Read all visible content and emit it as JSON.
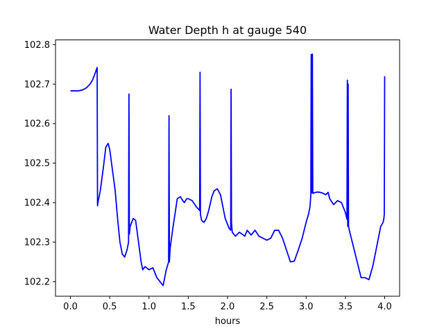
{
  "chart_data": {
    "type": "line",
    "title": "Water Depth h at gauge 540",
    "xlabel": "hours",
    "ylabel": "",
    "xlim": [
      -0.19,
      4.19
    ],
    "ylim": [
      102.163,
      102.812
    ],
    "grid": false,
    "line_color": "#0000ff",
    "xticks": [
      0.0,
      0.5,
      1.0,
      1.5,
      2.0,
      2.5,
      3.0,
      3.5,
      4.0
    ],
    "xtick_labels": [
      "0.0",
      "0.5",
      "1.0",
      "1.5",
      "2.0",
      "2.5",
      "3.0",
      "3.5",
      "4.0"
    ],
    "yticks": [
      102.2,
      102.3,
      102.4,
      102.5,
      102.6,
      102.7,
      102.8
    ],
    "ytick_labels": [
      "102.2",
      "102.3",
      "102.4",
      "102.5",
      "102.6",
      "102.7",
      "102.8"
    ],
    "series": [
      {
        "x": [
          0.0,
          0.1,
          0.15,
          0.2,
          0.25,
          0.28,
          0.31,
          0.34,
          0.345,
          0.35,
          0.38,
          0.42,
          0.45,
          0.48,
          0.5,
          0.53,
          0.57,
          0.6,
          0.63,
          0.66,
          0.69,
          0.72,
          0.74,
          0.745,
          0.75,
          0.76,
          0.8,
          0.83,
          0.86,
          0.9,
          0.92,
          0.95,
          1.0,
          1.05,
          1.1,
          1.14,
          1.18,
          1.2,
          1.22,
          1.25,
          1.255,
          1.26,
          1.265,
          1.27,
          1.3,
          1.33,
          1.36,
          1.4,
          1.43,
          1.45,
          1.48,
          1.5,
          1.55,
          1.6,
          1.645,
          1.65,
          1.655,
          1.67,
          1.7,
          1.73,
          1.76,
          1.8,
          1.83,
          1.87,
          1.91,
          1.94,
          1.97,
          2.0,
          2.02,
          2.04,
          2.045,
          2.05,
          2.06,
          2.1,
          2.15,
          2.2,
          2.22,
          2.25,
          2.3,
          2.35,
          2.4,
          2.45,
          2.5,
          2.55,
          2.6,
          2.65,
          2.7,
          2.75,
          2.8,
          2.85,
          2.9,
          2.95,
          3.0,
          3.03,
          3.05,
          3.06,
          3.065,
          3.07,
          3.075,
          3.08,
          3.085,
          3.09,
          3.1,
          3.15,
          3.2,
          3.25,
          3.28,
          3.3,
          3.35,
          3.4,
          3.45,
          3.5,
          3.52,
          3.525,
          3.53,
          3.535,
          3.54,
          3.55,
          3.6,
          3.65,
          3.7,
          3.75,
          3.8,
          3.85,
          3.9,
          3.95,
          3.98,
          3.99,
          3.995,
          4.0
        ],
        "y": [
          102.683,
          102.683,
          102.685,
          102.69,
          102.7,
          102.71,
          102.725,
          102.742,
          102.392,
          102.4,
          102.43,
          102.49,
          102.54,
          102.55,
          102.535,
          102.49,
          102.43,
          102.36,
          102.3,
          102.27,
          102.262,
          102.28,
          102.3,
          102.675,
          102.32,
          102.34,
          102.36,
          102.355,
          102.31,
          102.25,
          102.23,
          102.238,
          102.23,
          102.235,
          102.21,
          102.2,
          102.19,
          102.21,
          102.23,
          102.25,
          102.62,
          102.25,
          102.27,
          102.285,
          102.33,
          102.37,
          102.41,
          102.415,
          102.405,
          102.4,
          102.41,
          102.41,
          102.405,
          102.39,
          102.38,
          102.73,
          102.37,
          102.355,
          102.35,
          102.36,
          102.38,
          102.415,
          102.43,
          102.435,
          102.42,
          102.39,
          102.36,
          102.345,
          102.335,
          102.33,
          102.687,
          102.35,
          102.325,
          102.315,
          102.325,
          102.318,
          102.315,
          102.33,
          102.318,
          102.33,
          102.315,
          102.31,
          102.305,
          102.31,
          102.33,
          102.33,
          102.31,
          102.28,
          102.25,
          102.252,
          102.28,
          102.31,
          102.35,
          102.37,
          102.39,
          102.42,
          102.775,
          102.425,
          102.425,
          102.776,
          102.427,
          102.423,
          102.425,
          102.427,
          102.425,
          102.42,
          102.426,
          102.41,
          102.395,
          102.405,
          102.4,
          102.375,
          102.358,
          102.71,
          102.34,
          102.7,
          102.34,
          102.33,
          102.29,
          102.25,
          102.21,
          102.21,
          102.205,
          102.24,
          102.29,
          102.34,
          102.35,
          102.36,
          102.37,
          102.72
        ]
      }
    ]
  }
}
